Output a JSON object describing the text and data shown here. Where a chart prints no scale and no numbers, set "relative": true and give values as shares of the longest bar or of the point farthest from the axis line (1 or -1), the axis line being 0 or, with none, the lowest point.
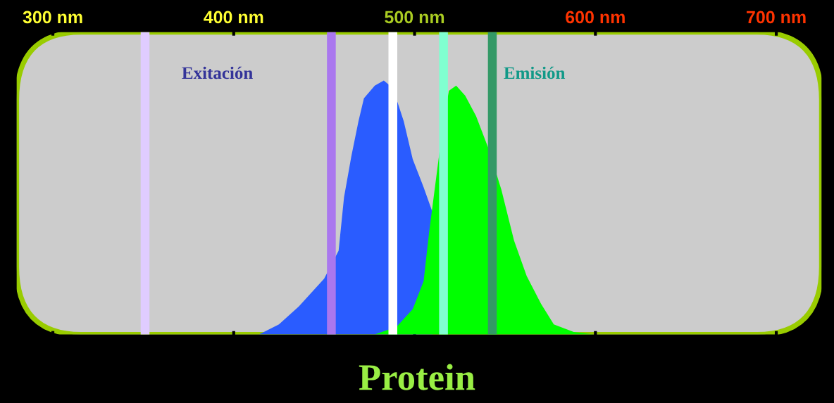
{
  "chart_data": {
    "type": "area",
    "title": "Protein",
    "relative": true,
    "xlim": [
      280,
      725
    ],
    "xticks": [
      {
        "value": 300,
        "label": "300 nm"
      },
      {
        "value": 400,
        "label": "400 nm"
      },
      {
        "value": 500,
        "label": "500 nm"
      },
      {
        "value": 600,
        "label": "600 nm"
      },
      {
        "value": 700,
        "label": "700 nm"
      }
    ],
    "annotations": [
      "Exitación",
      "Emisión"
    ],
    "series": [
      {
        "color": "#2a5cff",
        "x": [
          414,
          425,
          436,
          450,
          458,
          461,
          465,
          469,
          472,
          478,
          483,
          488,
          494,
          499,
          505,
          510
        ],
        "values": [
          0,
          0.04,
          0.11,
          0.22,
          0.33,
          0.54,
          0.7,
          0.84,
          0.93,
          0.98,
          1.0,
          0.97,
          0.84,
          0.69,
          0.58,
          0.48
        ]
      },
      {
        "color": "#00ff00",
        "x": [
          478,
          490,
          499,
          505,
          508,
          512,
          516,
          519,
          523,
          528,
          534,
          541,
          548,
          555,
          562,
          570,
          577,
          588,
          599
        ],
        "values": [
          0,
          0.03,
          0.1,
          0.21,
          0.4,
          0.62,
          0.84,
          0.96,
          0.98,
          0.94,
          0.86,
          0.73,
          0.57,
          0.37,
          0.23,
          0.12,
          0.04,
          0.01,
          0
        ]
      }
    ],
    "ref_lines": [
      {
        "axis": "x",
        "value": 351,
        "color": "#e0ccff"
      },
      {
        "axis": "x",
        "value": 454,
        "color": "#aa77ee"
      },
      {
        "axis": "x",
        "value": 488,
        "color": "#ffffff"
      },
      {
        "axis": "x",
        "value": 516,
        "color": "#80ffd0"
      },
      {
        "axis": "x",
        "value": 543,
        "color": "#339966"
      }
    ],
    "grid": false,
    "legend": false
  }
}
